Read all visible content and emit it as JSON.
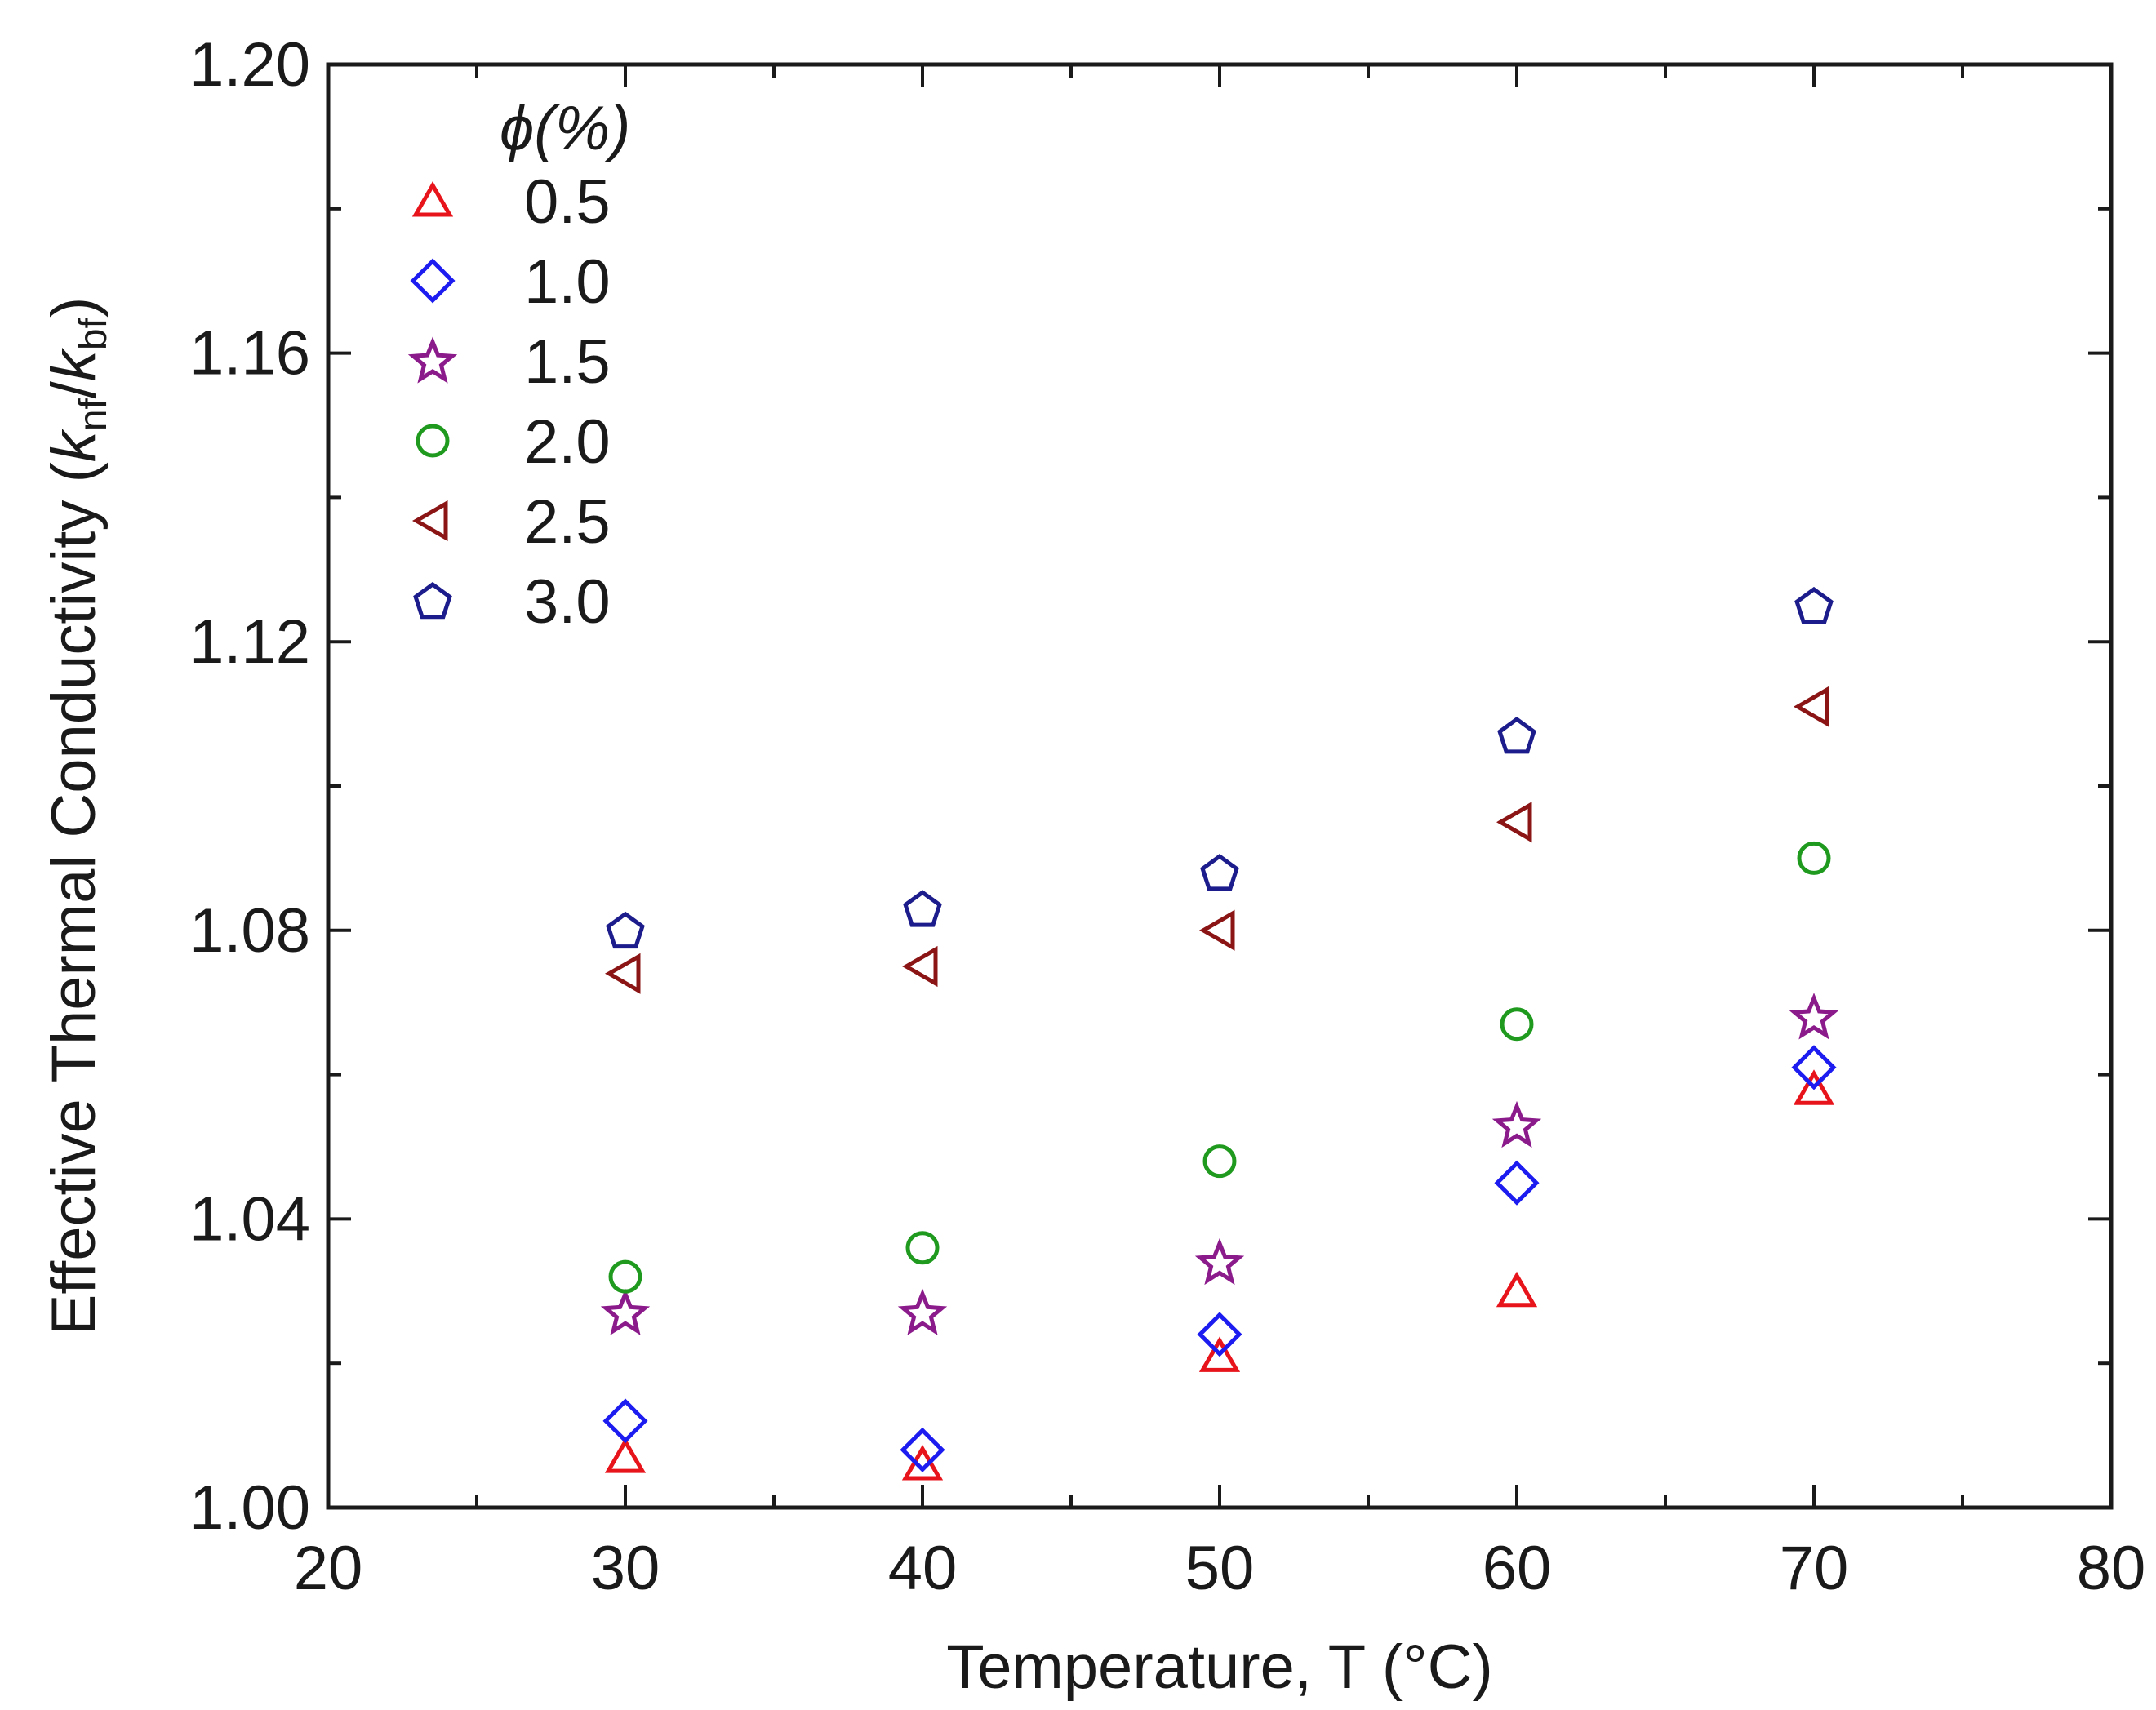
{
  "chart_data": {
    "type": "scatter",
    "title": "",
    "xlabel": "Temperature, T (°C)",
    "ylabel": "Effective Thermal Conductivity (k_nf / k_bf)",
    "ylabel_parts": {
      "main": "Effective Thermal Conductivity (",
      "k1": "k",
      "sub1": "nf",
      "slash": "/",
      "k2": "k",
      "sub2": "bf",
      "close": ")"
    },
    "xlabel_parts": {
      "main": "Temperature, T (",
      "unit": "°C",
      "close": ")"
    },
    "xlim": [
      20,
      80
    ],
    "ylim": [
      1.0,
      1.2
    ],
    "x_ticks": [
      20,
      30,
      40,
      50,
      60,
      70,
      80
    ],
    "x_tick_labels": [
      "20",
      "30",
      "40",
      "50",
      "60",
      "70",
      "80"
    ],
    "y_ticks": [
      1.0,
      1.04,
      1.08,
      1.12,
      1.16,
      1.2
    ],
    "y_tick_labels": [
      "1.00",
      "1.04",
      "1.08",
      "1.12",
      "1.16",
      "1.20"
    ],
    "legend_title": "ϕ(%)",
    "legend_position": "top-left",
    "grid": false,
    "x": [
      30,
      40,
      50,
      60,
      70
    ],
    "series": [
      {
        "name": "0.5",
        "marker": "triangle-up",
        "color": "#e8141b",
        "values": [
          1.007,
          1.006,
          1.021,
          1.03,
          1.058
        ]
      },
      {
        "name": "1.0",
        "marker": "diamond",
        "color": "#1c1cf0",
        "values": [
          1.012,
          1.008,
          1.024,
          1.045,
          1.061
        ]
      },
      {
        "name": "1.5",
        "marker": "star",
        "color": "#8b1a8b",
        "values": [
          1.027,
          1.027,
          1.034,
          1.053,
          1.068
        ]
      },
      {
        "name": "2.0",
        "marker": "circle",
        "color": "#1f9a1f",
        "values": [
          1.032,
          1.036,
          1.048,
          1.067,
          1.09
        ]
      },
      {
        "name": "2.5",
        "marker": "triangle-left",
        "color": "#8b1515",
        "values": [
          1.074,
          1.075,
          1.08,
          1.095,
          1.111
        ]
      },
      {
        "name": "3.0",
        "marker": "pentagon",
        "color": "#1c1c8c",
        "values": [
          1.08,
          1.083,
          1.088,
          1.107,
          1.125
        ]
      }
    ]
  }
}
